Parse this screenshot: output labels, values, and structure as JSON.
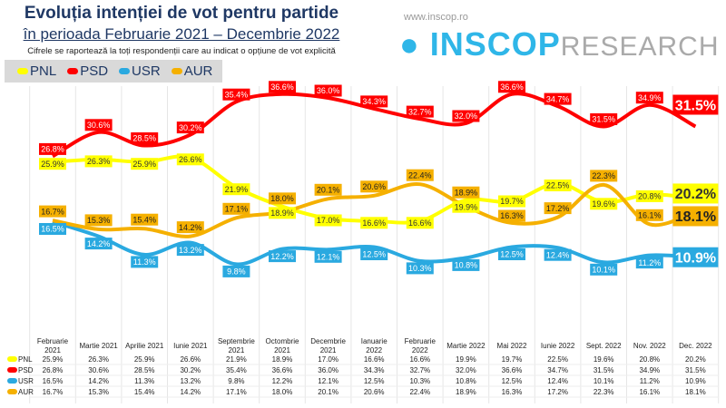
{
  "title": "Evoluția intenției de vot pentru partide",
  "subtitle": "în perioada Februarie 2021 – Decembrie 2022",
  "note": "Cifrele se raportează la toți respondenții care au indicat o opțiune de vot explicită",
  "brand": {
    "url": "www.inscop.ro",
    "name_bold": "INSCOP",
    "name_light": "RESEARCH"
  },
  "chart_data": {
    "type": "line",
    "categories": [
      "Februarie 2021",
      "Martie 2021",
      "Aprilie 2021",
      "Iunie 2021",
      "Septembrie 2021",
      "Octombrie 2021",
      "Decembrie 2021",
      "Ianuarie 2022",
      "Februarie 2022",
      "Martie 2022",
      "Mai 2022",
      "Iunie 2022",
      "Sept. 2022",
      "Nov. 2022",
      "Dec. 2022"
    ],
    "series": [
      {
        "name": "PNL",
        "color": "#ffff00",
        "text_color": "#333333",
        "values": [
          25.9,
          26.3,
          25.9,
          26.6,
          21.9,
          18.9,
          17.0,
          16.6,
          16.6,
          19.9,
          19.7,
          22.5,
          19.6,
          20.8,
          20.2
        ]
      },
      {
        "name": "PSD",
        "color": "#ff0000",
        "text_color": "#ffffff",
        "values": [
          26.8,
          30.6,
          28.5,
          30.2,
          35.4,
          36.6,
          36.0,
          34.3,
          32.7,
          32.0,
          36.6,
          34.7,
          31.5,
          34.9,
          31.5
        ]
      },
      {
        "name": "USR",
        "color": "#2aa9e0",
        "text_color": "#ffffff",
        "values": [
          16.5,
          14.2,
          11.3,
          13.2,
          9.8,
          12.2,
          12.1,
          12.5,
          10.3,
          10.8,
          12.5,
          12.4,
          10.1,
          11.2,
          10.9
        ]
      },
      {
        "name": "AUR",
        "color": "#f5b000",
        "text_color": "#222222",
        "values": [
          16.7,
          15.3,
          15.4,
          14.2,
          17.1,
          18.0,
          20.1,
          20.6,
          22.4,
          18.9,
          16.3,
          17.2,
          22.3,
          16.1,
          18.1
        ]
      }
    ],
    "unit": "%",
    "legend": "top-left",
    "grid": "vertical",
    "table": true
  }
}
